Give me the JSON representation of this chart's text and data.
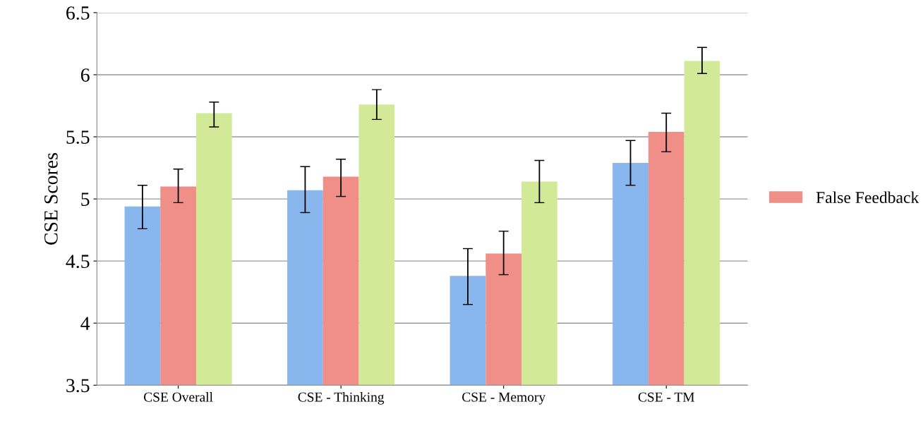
{
  "chart_data": {
    "type": "bar",
    "ylabel": "CSE Scores",
    "categories": [
      "CSE Overall",
      "CSE - Thinking",
      "CSE - Memory",
      "CSE - TM"
    ],
    "series": [
      {
        "color": "#8ab6ee",
        "values": [
          4.94,
          5.07,
          4.38,
          5.29
        ],
        "errors": [
          [
            4.76,
            5.11
          ],
          [
            4.89,
            5.26
          ],
          [
            4.15,
            4.6
          ],
          [
            5.11,
            5.47
          ]
        ]
      },
      {
        "name": "False Feedback",
        "color": "#f08e88",
        "values": [
          5.1,
          5.18,
          4.56,
          5.54
        ],
        "errors": [
          [
            4.97,
            5.24
          ],
          [
            5.02,
            5.32
          ],
          [
            4.39,
            4.74
          ],
          [
            5.38,
            5.69
          ]
        ]
      },
      {
        "color": "#d2ea98",
        "values": [
          5.69,
          5.76,
          5.14,
          6.11
        ],
        "errors": [
          [
            5.58,
            5.78
          ],
          [
            5.64,
            5.88
          ],
          [
            4.97,
            5.31
          ],
          [
            6.01,
            6.22
          ]
        ]
      }
    ],
    "ylim": [
      3.5,
      6.5
    ],
    "yticks": [
      3.5,
      4,
      4.5,
      5,
      5.5,
      6,
      6.5
    ],
    "grid": "y",
    "legend": "right"
  }
}
